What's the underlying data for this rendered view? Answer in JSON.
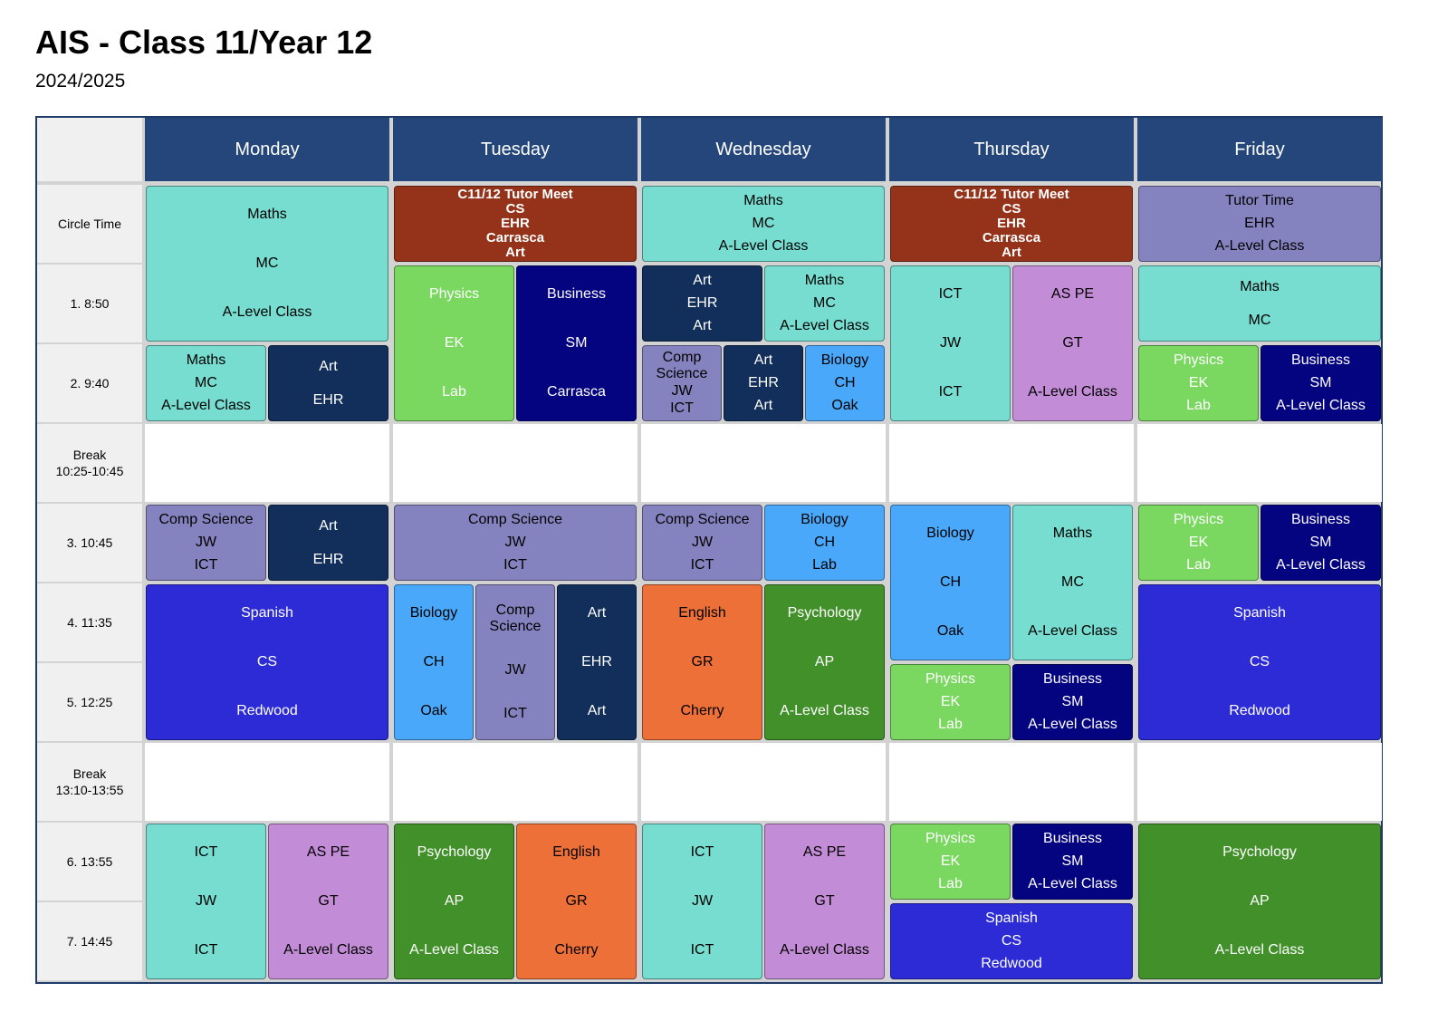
{
  "title": "AIS - Class 11/Year 12",
  "subtitle": "2024/2025",
  "days": [
    "Monday",
    "Tuesday",
    "Wednesday",
    "Thursday",
    "Friday"
  ],
  "periods": [
    {
      "lines": [
        "Circle Time"
      ]
    },
    {
      "lines": [
        "1. 8:50"
      ]
    },
    {
      "lines": [
        "2. 9:40"
      ]
    },
    {
      "lines": [
        "Break",
        "10:25-10:45"
      ],
      "break": true
    },
    {
      "lines": [
        "3. 10:45"
      ]
    },
    {
      "lines": [
        "4. 11:35"
      ]
    },
    {
      "lines": [
        "5. 12:25"
      ]
    },
    {
      "lines": [
        "Break",
        "13:10-13:55"
      ],
      "break": true
    },
    {
      "lines": [
        "6. 13:55"
      ]
    },
    {
      "lines": [
        "7. 14:45"
      ]
    }
  ],
  "colors": {
    "header": "#24467a",
    "maths": "#76ddd0",
    "ict": "#76ddd0",
    "art": "#122e5a",
    "tutor_meet": "#94331a",
    "tutor_time": "#8583bf",
    "comp_science": "#8583bf",
    "physics": "#7ad860",
    "business": "#040480",
    "biology": "#4aa8fa",
    "as_pe": "#c38cd6",
    "spanish": "#2c2bd6",
    "english": "#ec7038",
    "psychology": "#41902a"
  },
  "classes": [
    {
      "day": 0,
      "start": 0,
      "span": 2,
      "sub": 0,
      "of": 1,
      "lines": [
        "Maths",
        "MC",
        "A-Level Class"
      ],
      "color": "#76ddd0",
      "text": "#000000"
    },
    {
      "day": 0,
      "start": 2,
      "span": 1,
      "sub": 0,
      "of": 2,
      "lines": [
        "Maths",
        "MC",
        "A-Level Class"
      ],
      "color": "#76ddd0",
      "text": "#000000"
    },
    {
      "day": 0,
      "start": 2,
      "span": 1,
      "sub": 1,
      "of": 2,
      "lines": [
        "Art",
        "EHR"
      ],
      "color": "#122e5a",
      "text": "#ffffff"
    },
    {
      "day": 0,
      "start": 4,
      "span": 1,
      "sub": 0,
      "of": 2,
      "lines": [
        "Comp Science",
        "JW",
        "ICT"
      ],
      "color": "#8583bf",
      "text": "#000000"
    },
    {
      "day": 0,
      "start": 4,
      "span": 1,
      "sub": 1,
      "of": 2,
      "lines": [
        "Art",
        "EHR"
      ],
      "color": "#122e5a",
      "text": "#ffffff"
    },
    {
      "day": 0,
      "start": 5,
      "span": 2,
      "sub": 0,
      "of": 1,
      "lines": [
        "Spanish",
        "CS",
        "Redwood"
      ],
      "color": "#2c2bd6",
      "text": "#ffffff"
    },
    {
      "day": 0,
      "start": 8,
      "span": 2,
      "sub": 0,
      "of": 2,
      "lines": [
        "ICT",
        "JW",
        "ICT"
      ],
      "color": "#76ddd0",
      "text": "#000000"
    },
    {
      "day": 0,
      "start": 8,
      "span": 2,
      "sub": 1,
      "of": 2,
      "lines": [
        "AS PE",
        "GT",
        "A-Level Class"
      ],
      "color": "#c38cd6",
      "text": "#000000"
    },
    {
      "day": 1,
      "start": 0,
      "span": 1,
      "sub": 0,
      "of": 1,
      "lines": [
        "C11/12 Tutor Meet",
        "CS",
        "EHR",
        "Carrasca",
        "Art"
      ],
      "color": "#94331a",
      "text": "#ffffff",
      "tight": true
    },
    {
      "day": 1,
      "start": 1,
      "span": 2,
      "sub": 0,
      "of": 2,
      "lines": [
        "Physics",
        "EK",
        "Lab"
      ],
      "color": "#7ad860",
      "text": "#ffffff"
    },
    {
      "day": 1,
      "start": 1,
      "span": 2,
      "sub": 1,
      "of": 2,
      "lines": [
        "Business",
        "SM",
        "Carrasca"
      ],
      "color": "#040480",
      "text": "#ffffff"
    },
    {
      "day": 1,
      "start": 4,
      "span": 1,
      "sub": 0,
      "of": 1,
      "lines": [
        "Comp Science",
        "JW",
        "ICT"
      ],
      "color": "#8583bf",
      "text": "#000000"
    },
    {
      "day": 1,
      "start": 5,
      "span": 2,
      "sub": 0,
      "of": 3,
      "lines": [
        "Biology",
        "CH",
        "Oak"
      ],
      "color": "#4aa8fa",
      "text": "#000000"
    },
    {
      "day": 1,
      "start": 5,
      "span": 2,
      "sub": 1,
      "of": 3,
      "lines": [
        "Comp Science",
        "JW",
        "ICT"
      ],
      "color": "#8583bf",
      "text": "#000000"
    },
    {
      "day": 1,
      "start": 5,
      "span": 2,
      "sub": 2,
      "of": 3,
      "lines": [
        "Art",
        "EHR",
        "Art"
      ],
      "color": "#122e5a",
      "text": "#ffffff"
    },
    {
      "day": 1,
      "start": 8,
      "span": 2,
      "sub": 0,
      "of": 2,
      "lines": [
        "Psychology",
        "AP",
        "A-Level Class"
      ],
      "color": "#41902a",
      "text": "#ffffff"
    },
    {
      "day": 1,
      "start": 8,
      "span": 2,
      "sub": 1,
      "of": 2,
      "lines": [
        "English",
        "GR",
        "Cherry"
      ],
      "color": "#ec7038",
      "text": "#000000"
    },
    {
      "day": 2,
      "start": 0,
      "span": 1,
      "sub": 0,
      "of": 1,
      "lines": [
        "Maths",
        "MC",
        "A-Level Class"
      ],
      "color": "#76ddd0",
      "text": "#000000"
    },
    {
      "day": 2,
      "start": 1,
      "span": 1,
      "sub": 0,
      "of": 2,
      "lines": [
        "Art",
        "EHR",
        "Art"
      ],
      "color": "#122e5a",
      "text": "#ffffff"
    },
    {
      "day": 2,
      "start": 1,
      "span": 1,
      "sub": 1,
      "of": 2,
      "lines": [
        "Maths",
        "MC",
        "A-Level Class"
      ],
      "color": "#76ddd0",
      "text": "#000000"
    },
    {
      "day": 2,
      "start": 2,
      "span": 1,
      "sub": 0,
      "of": 3,
      "lines": [
        "Comp Science",
        "JW",
        "ICT"
      ],
      "color": "#8583bf",
      "text": "#000000"
    },
    {
      "day": 2,
      "start": 2,
      "span": 1,
      "sub": 1,
      "of": 3,
      "lines": [
        "Art",
        "EHR",
        "Art"
      ],
      "color": "#122e5a",
      "text": "#ffffff"
    },
    {
      "day": 2,
      "start": 2,
      "span": 1,
      "sub": 2,
      "of": 3,
      "lines": [
        "Biology",
        "CH",
        "Oak"
      ],
      "color": "#4aa8fa",
      "text": "#000000"
    },
    {
      "day": 2,
      "start": 4,
      "span": 1,
      "sub": 0,
      "of": 2,
      "lines": [
        "Comp Science",
        "JW",
        "ICT"
      ],
      "color": "#8583bf",
      "text": "#000000"
    },
    {
      "day": 2,
      "start": 4,
      "span": 1,
      "sub": 1,
      "of": 2,
      "lines": [
        "Biology",
        "CH",
        "Lab"
      ],
      "color": "#4aa8fa",
      "text": "#000000"
    },
    {
      "day": 2,
      "start": 5,
      "span": 2,
      "sub": 0,
      "of": 2,
      "lines": [
        "English",
        "GR",
        "Cherry"
      ],
      "color": "#ec7038",
      "text": "#000000"
    },
    {
      "day": 2,
      "start": 5,
      "span": 2,
      "sub": 1,
      "of": 2,
      "lines": [
        "Psychology",
        "AP",
        "A-Level Class"
      ],
      "color": "#41902a",
      "text": "#ffffff"
    },
    {
      "day": 2,
      "start": 8,
      "span": 2,
      "sub": 0,
      "of": 2,
      "lines": [
        "ICT",
        "JW",
        "ICT"
      ],
      "color": "#76ddd0",
      "text": "#000000"
    },
    {
      "day": 2,
      "start": 8,
      "span": 2,
      "sub": 1,
      "of": 2,
      "lines": [
        "AS PE",
        "GT",
        "A-Level Class"
      ],
      "color": "#c38cd6",
      "text": "#000000"
    },
    {
      "day": 3,
      "start": 0,
      "span": 1,
      "sub": 0,
      "of": 1,
      "lines": [
        "C11/12 Tutor Meet",
        "CS",
        "EHR",
        "Carrasca",
        "Art"
      ],
      "color": "#94331a",
      "text": "#ffffff",
      "tight": true
    },
    {
      "day": 3,
      "start": 1,
      "span": 2,
      "sub": 0,
      "of": 2,
      "lines": [
        "ICT",
        "JW",
        "ICT"
      ],
      "color": "#76ddd0",
      "text": "#000000"
    },
    {
      "day": 3,
      "start": 1,
      "span": 2,
      "sub": 1,
      "of": 2,
      "lines": [
        "AS PE",
        "GT",
        "A-Level Class"
      ],
      "color": "#c38cd6",
      "text": "#000000"
    },
    {
      "day": 3,
      "start": 4,
      "span": 2,
      "sub": 0,
      "of": 2,
      "lines": [
        "Biology",
        "CH",
        "Oak"
      ],
      "color": "#4aa8fa",
      "text": "#000000"
    },
    {
      "day": 3,
      "start": 4,
      "span": 2,
      "sub": 1,
      "of": 2,
      "lines": [
        "Maths",
        "MC",
        "A-Level Class"
      ],
      "color": "#76ddd0",
      "text": "#000000"
    },
    {
      "day": 3,
      "start": 6,
      "span": 1,
      "sub": 0,
      "of": 2,
      "lines": [
        "Physics",
        "EK",
        "Lab"
      ],
      "color": "#7ad860",
      "text": "#ffffff"
    },
    {
      "day": 3,
      "start": 6,
      "span": 1,
      "sub": 1,
      "of": 2,
      "lines": [
        "Business",
        "SM",
        "A-Level Class"
      ],
      "color": "#040480",
      "text": "#ffffff"
    },
    {
      "day": 3,
      "start": 8,
      "span": 1,
      "sub": 0,
      "of": 2,
      "lines": [
        "Physics",
        "EK",
        "Lab"
      ],
      "color": "#7ad860",
      "text": "#ffffff"
    },
    {
      "day": 3,
      "start": 8,
      "span": 1,
      "sub": 1,
      "of": 2,
      "lines": [
        "Business",
        "SM",
        "A-Level Class"
      ],
      "color": "#040480",
      "text": "#ffffff"
    },
    {
      "day": 3,
      "start": 9,
      "span": 1,
      "sub": 0,
      "of": 1,
      "lines": [
        "Spanish",
        "CS",
        "Redwood"
      ],
      "color": "#2c2bd6",
      "text": "#ffffff"
    },
    {
      "day": 4,
      "start": 0,
      "span": 1,
      "sub": 0,
      "of": 1,
      "lines": [
        "Tutor Time",
        "EHR",
        "A-Level Class"
      ],
      "color": "#8583bf",
      "text": "#000000"
    },
    {
      "day": 4,
      "start": 1,
      "span": 1,
      "sub": 0,
      "of": 1,
      "lines": [
        "Maths",
        "MC"
      ],
      "color": "#76ddd0",
      "text": "#000000"
    },
    {
      "day": 4,
      "start": 2,
      "span": 1,
      "sub": 0,
      "of": 2,
      "lines": [
        "Physics",
        "EK",
        "Lab"
      ],
      "color": "#7ad860",
      "text": "#ffffff"
    },
    {
      "day": 4,
      "start": 2,
      "span": 1,
      "sub": 1,
      "of": 2,
      "lines": [
        "Business",
        "SM",
        "A-Level Class"
      ],
      "color": "#040480",
      "text": "#ffffff"
    },
    {
      "day": 4,
      "start": 4,
      "span": 1,
      "sub": 0,
      "of": 2,
      "lines": [
        "Physics",
        "EK",
        "Lab"
      ],
      "color": "#7ad860",
      "text": "#ffffff"
    },
    {
      "day": 4,
      "start": 4,
      "span": 1,
      "sub": 1,
      "of": 2,
      "lines": [
        "Business",
        "SM",
        "A-Level Class"
      ],
      "color": "#040480",
      "text": "#ffffff"
    },
    {
      "day": 4,
      "start": 5,
      "span": 2,
      "sub": 0,
      "of": 1,
      "lines": [
        "Spanish",
        "CS",
        "Redwood"
      ],
      "color": "#2c2bd6",
      "text": "#ffffff"
    },
    {
      "day": 4,
      "start": 8,
      "span": 2,
      "sub": 0,
      "of": 1,
      "lines": [
        "Psychology",
        "AP",
        "A-Level Class"
      ],
      "color": "#41902a",
      "text": "#ffffff"
    }
  ]
}
